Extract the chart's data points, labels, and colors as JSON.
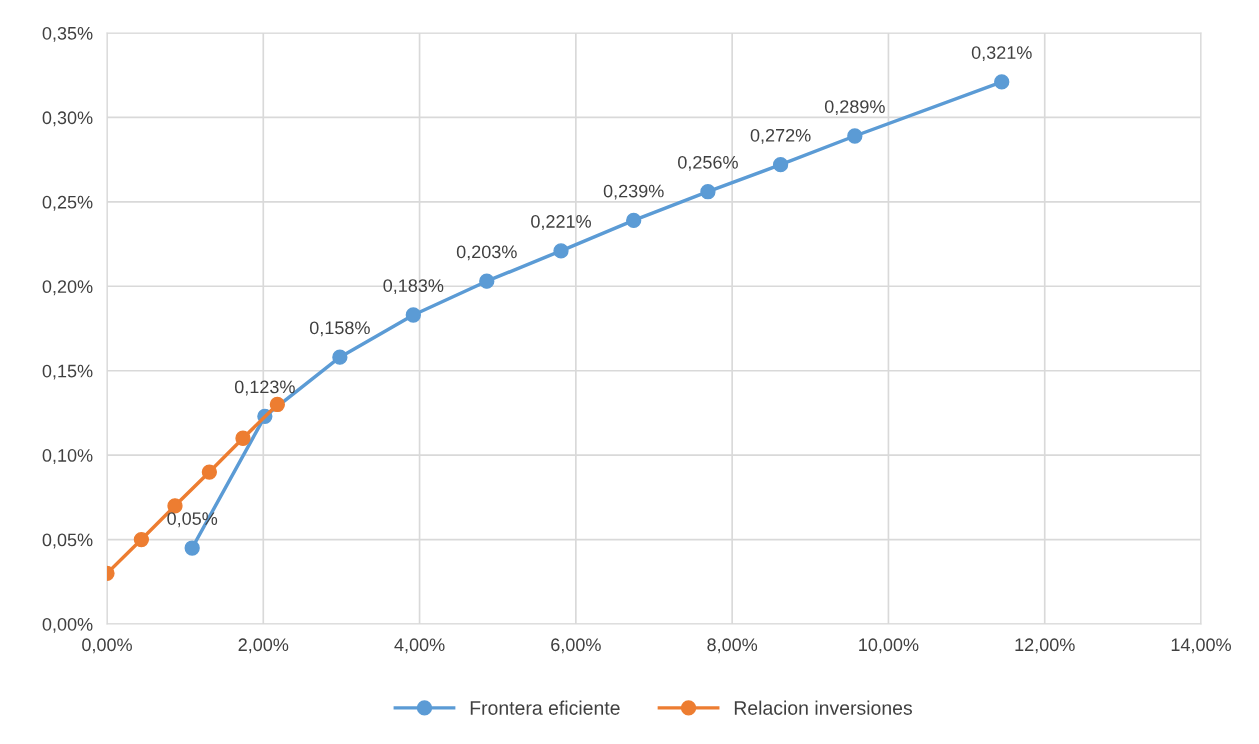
{
  "chart_data": {
    "type": "line",
    "series": [
      {
        "name": "Frontera eficiente",
        "color": "#5b9bd5",
        "x": [
          1.09,
          2.02,
          2.98,
          3.92,
          4.86,
          5.81,
          6.74,
          7.69,
          8.62,
          9.57,
          11.45
        ],
        "values": [
          0.045,
          0.123,
          0.158,
          0.183,
          0.203,
          0.221,
          0.239,
          0.256,
          0.272,
          0.289,
          0.321
        ],
        "value_labels": [
          "0,05%",
          "0,123%",
          "0,158%",
          "0,183%",
          "0,203%",
          "0,221%",
          "0,239%",
          "0,256%",
          "0,272%",
          "0,289%",
          "0,321%"
        ]
      },
      {
        "name": "Relacion inversiones",
        "color": "#ed7d31",
        "x": [
          0,
          0.44,
          0.87,
          1.31,
          1.74,
          2.18
        ],
        "values": [
          0.03,
          0.05,
          0.07,
          0.09,
          0.11,
          0.13
        ]
      }
    ],
    "xlim": [
      0,
      14
    ],
    "xticks": [
      {
        "value": 0,
        "label": "0,00%"
      },
      {
        "value": 2,
        "label": "2,00%"
      },
      {
        "value": 4,
        "label": "4,00%"
      },
      {
        "value": 6,
        "label": "6,00%"
      },
      {
        "value": 8,
        "label": "8,00%"
      },
      {
        "value": 10,
        "label": "10,00%"
      },
      {
        "value": 12,
        "label": "12,00%"
      },
      {
        "value": 14,
        "label": "14,00%"
      }
    ],
    "ylim": [
      0,
      0.35
    ],
    "yticks": [
      {
        "value": 0,
        "label": "0,00%"
      },
      {
        "value": 0.05,
        "label": "0,05%"
      },
      {
        "value": 0.1,
        "label": "0,10%"
      },
      {
        "value": 0.15,
        "label": "0,15%"
      },
      {
        "value": 0.2,
        "label": "0,20%"
      },
      {
        "value": 0.25,
        "label": "0,25%"
      },
      {
        "value": 0.3,
        "label": "0,30%"
      },
      {
        "value": 0.35,
        "label": "0,35%"
      }
    ],
    "grid": true,
    "legend": "bottom",
    "marker": "circle",
    "line_style": "solid"
  }
}
